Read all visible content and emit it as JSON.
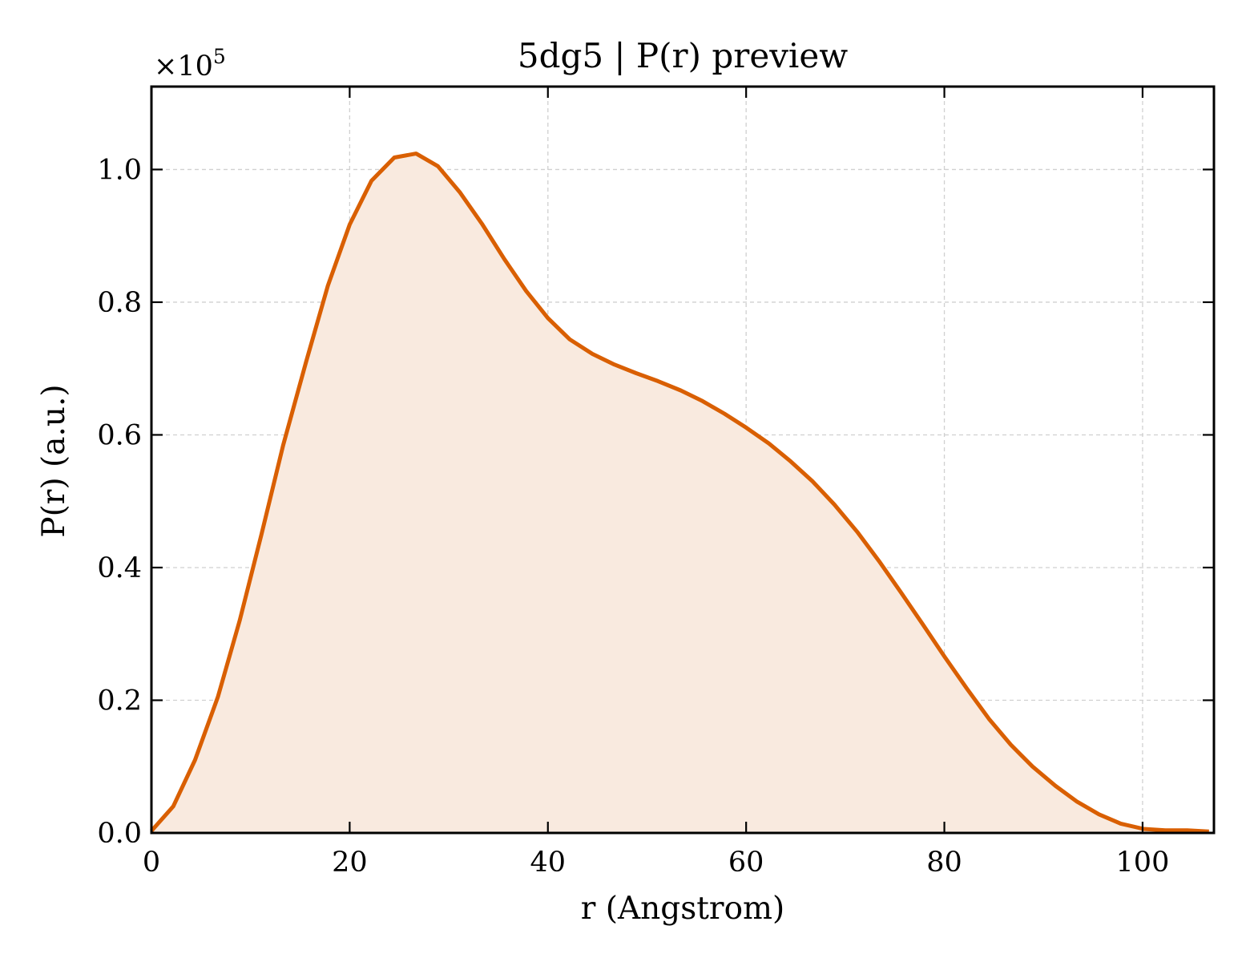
{
  "chart_data": {
    "type": "area",
    "title": "5dg5 | P(r) preview",
    "xlabel": "r (Angstrom)",
    "ylabel": "P(r) (a.u.)",
    "y_multiplier": "×10",
    "y_multiplier_exponent": "5",
    "xlim": [
      0,
      107.2
    ],
    "ylim": [
      0,
      1.125
    ],
    "xticks": [
      0,
      20,
      40,
      60,
      80,
      100
    ],
    "yticks": [
      0.0,
      0.2,
      0.4,
      0.6,
      0.8,
      1.0
    ],
    "xtick_labels": [
      "0",
      "20",
      "40",
      "60",
      "80",
      "100"
    ],
    "ytick_labels": [
      "0.0",
      "0.2",
      "0.4",
      "0.6",
      "0.8",
      "1.0"
    ],
    "grid": true,
    "line_color": "#d95f02",
    "fill_color": "#f9eadf",
    "series": [
      {
        "x": [
          0,
          2.2,
          4.4,
          6.7,
          8.9,
          11.1,
          13.3,
          15.6,
          17.8,
          20.0,
          22.2,
          24.5,
          26.7,
          28.9,
          31.1,
          33.4,
          35.6,
          37.8,
          40.0,
          42.2,
          44.5,
          46.7,
          48.9,
          51.1,
          53.4,
          55.6,
          57.8,
          60.0,
          62.3,
          64.5,
          66.7,
          68.9,
          71.2,
          73.4,
          75.6,
          77.8,
          80.0,
          82.3,
          84.5,
          86.7,
          88.9,
          91.2,
          93.4,
          95.6,
          97.8,
          100.1,
          102.3,
          104.5,
          106.7
        ],
        "y": [
          0.003,
          0.04,
          0.11,
          0.205,
          0.32,
          0.45,
          0.585,
          0.71,
          0.825,
          0.917,
          0.983,
          1.018,
          1.024,
          1.005,
          0.966,
          0.917,
          0.865,
          0.817,
          0.776,
          0.744,
          0.722,
          0.706,
          0.693,
          0.681,
          0.667,
          0.651,
          0.632,
          0.611,
          0.587,
          0.56,
          0.53,
          0.495,
          0.454,
          0.41,
          0.363,
          0.315,
          0.266,
          0.217,
          0.172,
          0.133,
          0.1,
          0.071,
          0.047,
          0.028,
          0.014,
          0.006,
          0.004,
          0.004,
          0.002
        ]
      }
    ]
  }
}
